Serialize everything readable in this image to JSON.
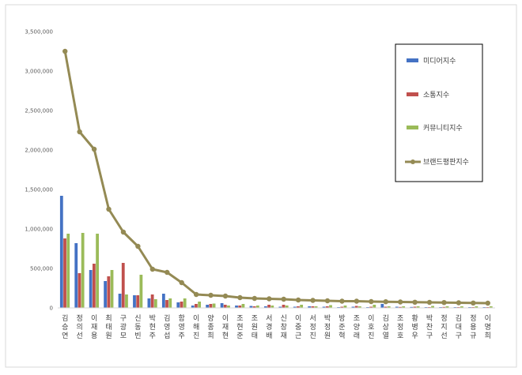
{
  "chart_data": {
    "type": "bar",
    "categories": [
      "김승연",
      "정의선",
      "이재용",
      "최태원",
      "구광모",
      "신동빈",
      "박현주",
      "김영섭",
      "함영주",
      "이해진",
      "양종희",
      "이재현",
      "조현준",
      "조원태",
      "서경배",
      "신창재",
      "이중근",
      "서정진",
      "박정원",
      "방준혁",
      "조양래",
      "이호진",
      "김상열",
      "조정호",
      "황병우",
      "박찬구",
      "정지선",
      "김대구",
      "정용규",
      "이명희"
    ],
    "series": [
      {
        "name": "미디어지수",
        "color": "#4472C4",
        "values": [
          1420000,
          820000,
          480000,
          340000,
          180000,
          160000,
          120000,
          180000,
          70000,
          30000,
          40000,
          60000,
          30000,
          25000,
          20000,
          15000,
          15000,
          20000,
          15000,
          10000,
          15000,
          10000,
          50000,
          15000,
          12000,
          10000,
          10000,
          10000,
          10000,
          10000
        ]
      },
      {
        "name": "소통지수",
        "color": "#C0504D",
        "values": [
          880000,
          440000,
          560000,
          400000,
          570000,
          160000,
          170000,
          100000,
          80000,
          50000,
          50000,
          40000,
          30000,
          20000,
          40000,
          40000,
          20000,
          20000,
          20000,
          15000,
          25000,
          15000,
          15000,
          12000,
          15000,
          10000,
          12000,
          10000,
          10000,
          10000
        ]
      },
      {
        "name": "커뮤니티지수",
        "color": "#9BBB59",
        "values": [
          940000,
          950000,
          940000,
          480000,
          170000,
          420000,
          110000,
          120000,
          120000,
          80000,
          55000,
          30000,
          50000,
          30000,
          30000,
          30000,
          40000,
          20000,
          35000,
          30000,
          20000,
          40000,
          20000,
          20000,
          20000,
          25000,
          20000,
          20000,
          20000,
          20000
        ]
      }
    ],
    "line": {
      "name": "브랜드평판지수",
      "color": "#948A54",
      "values": [
        3250000,
        2230000,
        2010000,
        1250000,
        960000,
        780000,
        490000,
        450000,
        320000,
        170000,
        160000,
        150000,
        130000,
        120000,
        115000,
        110000,
        100000,
        95000,
        90000,
        85000,
        85000,
        80000,
        78000,
        75000,
        72000,
        70000,
        68000,
        65000,
        62000,
        60000
      ]
    },
    "ylim": [
      0,
      3500000
    ],
    "yticks": [
      "0",
      "500,000",
      "1,000,000",
      "1,500,000",
      "2,000,000",
      "2,500,000",
      "3,000,000",
      "3,500,000"
    ],
    "grid": false,
    "legend": "right"
  }
}
